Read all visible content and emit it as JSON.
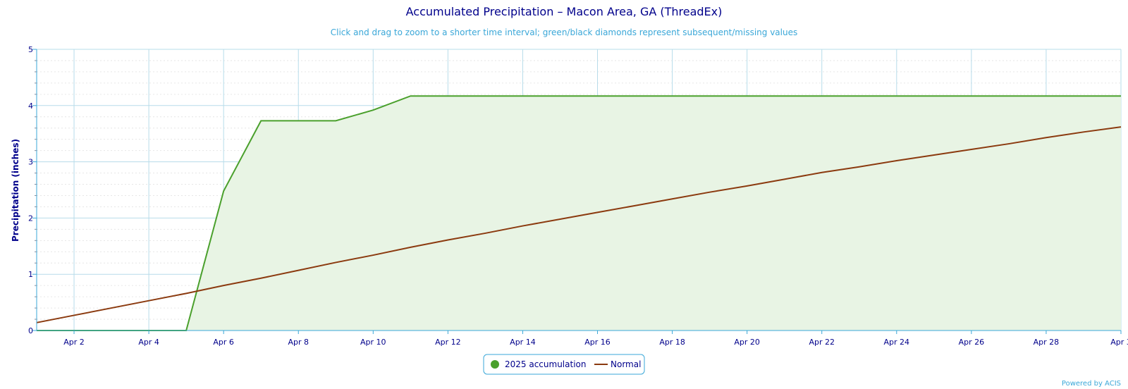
{
  "chart_data": {
    "type": "area",
    "title": "Accumulated Precipitation – Macon Area, GA (ThreadEx)",
    "subtitle": "Click and drag to zoom to a shorter time interval; green/black diamonds represent subsequent/missing values",
    "ylabel": "Precipitation (inches)",
    "xlabel": "",
    "ylim": [
      0,
      5
    ],
    "y_ticks": [
      "0",
      "1",
      "2",
      "3",
      "4",
      "5"
    ],
    "x_tick_labels": [
      "Apr 2",
      "Apr 4",
      "Apr 6",
      "Apr 8",
      "Apr 10",
      "Apr 12",
      "Apr 14",
      "Apr 16",
      "Apr 18",
      "Apr 20",
      "Apr 22",
      "Apr 24",
      "Apr 26",
      "Apr 28",
      "Apr 3"
    ],
    "x": [
      "Apr 1",
      "Apr 2",
      "Apr 3",
      "Apr 4",
      "Apr 5",
      "Apr 6",
      "Apr 7",
      "Apr 8",
      "Apr 9",
      "Apr 10",
      "Apr 11",
      "Apr 12",
      "Apr 13",
      "Apr 14",
      "Apr 15",
      "Apr 16",
      "Apr 17",
      "Apr 18",
      "Apr 19",
      "Apr 20",
      "Apr 21",
      "Apr 22",
      "Apr 23",
      "Apr 24",
      "Apr 25",
      "Apr 26",
      "Apr 27",
      "Apr 28",
      "Apr 29",
      "Apr 30"
    ],
    "series": [
      {
        "name": "2025 accumulation",
        "color": "#4aa02c",
        "fill": "#e8f4e4",
        "values": [
          0,
          0,
          0,
          0,
          0,
          2.48,
          3.73,
          3.73,
          3.73,
          3.92,
          4.17,
          4.17,
          4.17,
          4.17,
          4.17,
          4.17,
          4.17,
          4.17,
          4.17,
          4.17,
          4.17,
          4.17,
          4.17,
          4.17,
          4.17,
          4.17,
          4.17,
          4.17,
          4.17,
          4.17
        ]
      },
      {
        "name": "Normal",
        "color": "#8b3a0f",
        "values": [
          0.14,
          0.27,
          0.4,
          0.53,
          0.66,
          0.8,
          0.93,
          1.07,
          1.21,
          1.34,
          1.48,
          1.61,
          1.73,
          1.86,
          1.98,
          2.1,
          2.22,
          2.34,
          2.46,
          2.57,
          2.69,
          2.81,
          2.91,
          3.02,
          3.12,
          3.22,
          3.32,
          3.43,
          3.53,
          3.62
        ]
      }
    ],
    "grid": true,
    "legend": "bottom"
  },
  "credit": "Powered by ACIS"
}
